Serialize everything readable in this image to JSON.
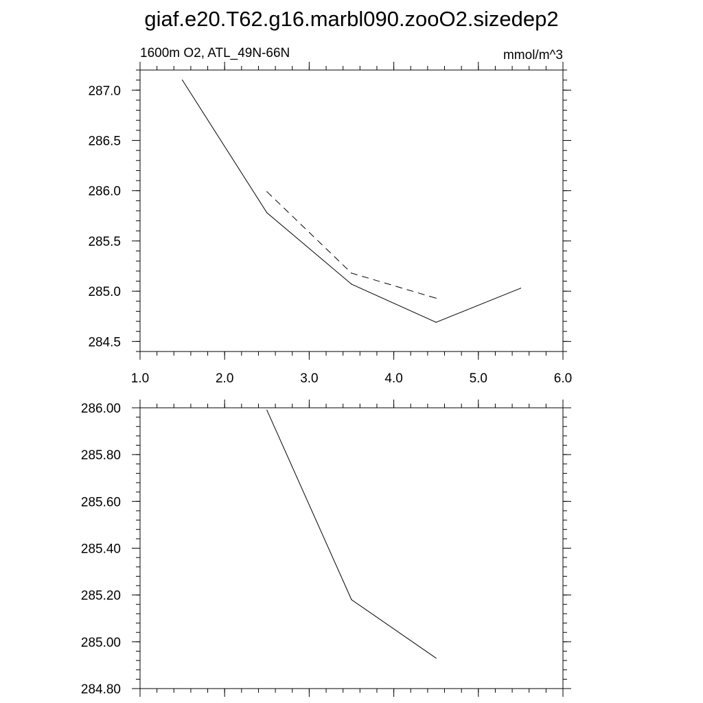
{
  "title": "giaf.e20.T62.g16.marbl090.zooO2.sizedep2",
  "chart_data": [
    {
      "type": "line",
      "subtitle_left": "1600m O2, ATL_49N-66N",
      "subtitle_right": "mmol/m^3",
      "xlabel": "",
      "ylabel": "",
      "xlim": [
        1.0,
        6.0
      ],
      "ylim": [
        284.4,
        287.2
      ],
      "x_ticks": [
        1.0,
        2.0,
        3.0,
        4.0,
        5.0,
        6.0
      ],
      "x_tick_labels": [
        "1.0",
        "2.0",
        "3.0",
        "4.0",
        "5.0",
        "6.0"
      ],
      "y_ticks": [
        284.5,
        285.0,
        285.5,
        286.0,
        286.5,
        287.0
      ],
      "y_tick_labels": [
        "284.5",
        "285.0",
        "285.5",
        "286.0",
        "286.5",
        "287.0"
      ],
      "grid": false,
      "series": [
        {
          "style": "solid",
          "color": "#000000",
          "x": [
            1.5,
            2.5,
            3.5,
            4.5,
            5.5
          ],
          "y": [
            287.1,
            285.78,
            285.07,
            284.69,
            285.03
          ]
        },
        {
          "style": "dashed",
          "color": "#000000",
          "x": [
            2.5,
            3.5,
            4.5
          ],
          "y": [
            285.99,
            285.18,
            284.93
          ]
        }
      ]
    },
    {
      "type": "line",
      "xlabel": "",
      "ylabel": "",
      "xlim": [
        1.0,
        6.0
      ],
      "ylim": [
        284.8,
        286.0
      ],
      "x_ticks": [
        1.0,
        2.0,
        3.0,
        4.0,
        5.0,
        6.0
      ],
      "y_ticks": [
        284.8,
        285.0,
        285.2,
        285.4,
        285.6,
        285.8,
        286.0
      ],
      "y_tick_labels": [
        "284.80",
        "285.00",
        "285.20",
        "285.40",
        "285.60",
        "285.80",
        "286.00"
      ],
      "grid": false,
      "series": [
        {
          "style": "solid",
          "color": "#000000",
          "x": [
            2.5,
            3.5,
            4.5
          ],
          "y": [
            285.99,
            285.18,
            284.93
          ]
        }
      ]
    }
  ]
}
